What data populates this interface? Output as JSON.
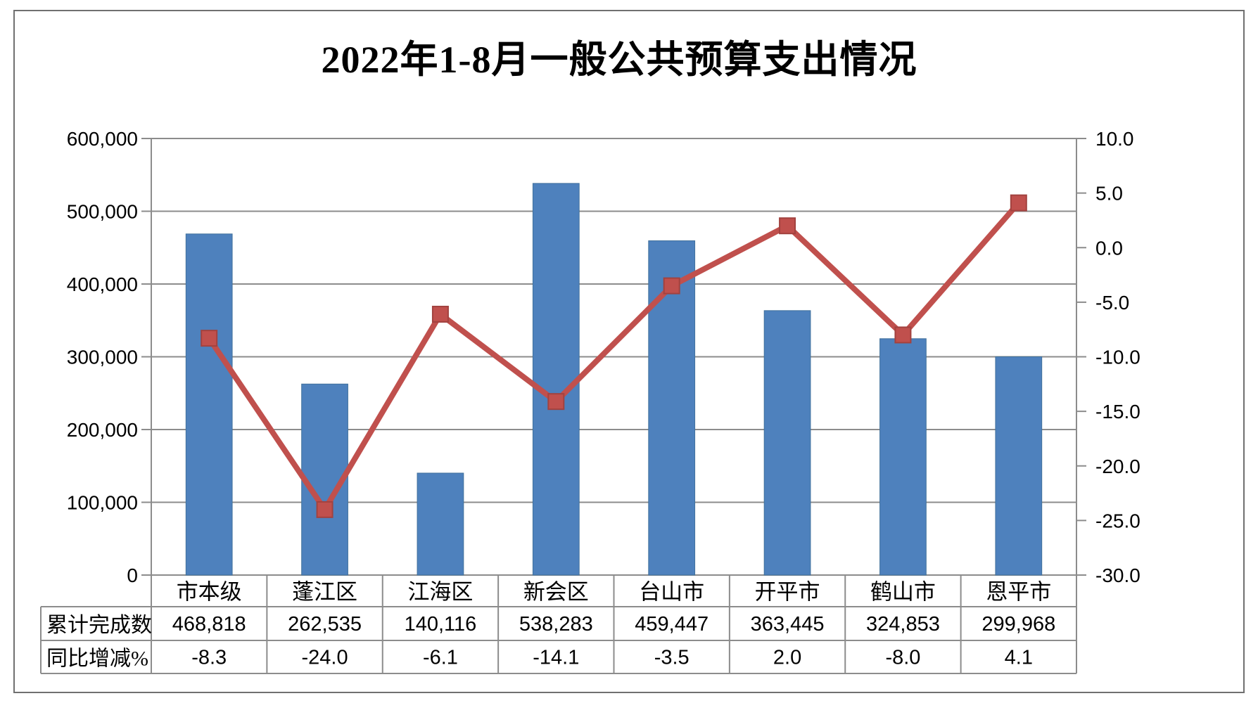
{
  "title": "2022年1-8月一般公共预算支出情况",
  "chart_data": {
    "type": "combo",
    "categories": [
      "市本级",
      "蓬江区",
      "江海区",
      "新会区",
      "台山市",
      "开平市",
      "鹤山市",
      "恩平市"
    ],
    "series": [
      {
        "name": "累计完成数",
        "type": "bar",
        "axis": "left",
        "values": [
          468818,
          262535,
          140116,
          538283,
          459447,
          363445,
          324853,
          299968
        ],
        "color": "#4E81BD",
        "edge_color": "#41719C"
      },
      {
        "name": "同比增减%",
        "type": "line",
        "axis": "right",
        "values": [
          -8.3,
          -24.0,
          -6.1,
          -14.1,
          -3.5,
          2.0,
          -8.0,
          4.1
        ],
        "color": "#C0504D",
        "marker": "square",
        "marker_edge_color": "#A2423F"
      }
    ],
    "left_axis": {
      "min": 0,
      "max": 600000,
      "step": 100000,
      "tick_labels": [
        "600,000",
        "500,000",
        "400,000",
        "300,000",
        "200,000",
        "100,000",
        "0"
      ]
    },
    "right_axis": {
      "min": -30,
      "max": 10,
      "step": 5,
      "tick_labels": [
        "10.0",
        "5.0",
        "0.0",
        "-5.0",
        "-10.0",
        "-15.0",
        "-20.0",
        "-25.0",
        "-30.0"
      ]
    },
    "grid": true,
    "grid_color": "#8C8C8C",
    "legend": "none",
    "title": "2022年1-8月一般公共预算支出情况"
  },
  "table": {
    "rows": [
      {
        "label": "累计完成数",
        "values": [
          "468,818",
          "262,535",
          "140,116",
          "538,283",
          "459,447",
          "363,445",
          "324,853",
          "299,968"
        ]
      },
      {
        "label": "同比增减%",
        "values": [
          "-8.3",
          "-24.0",
          "-6.1",
          "-14.1",
          "-3.5",
          "2.0",
          "-8.0",
          "4.1"
        ]
      }
    ]
  }
}
